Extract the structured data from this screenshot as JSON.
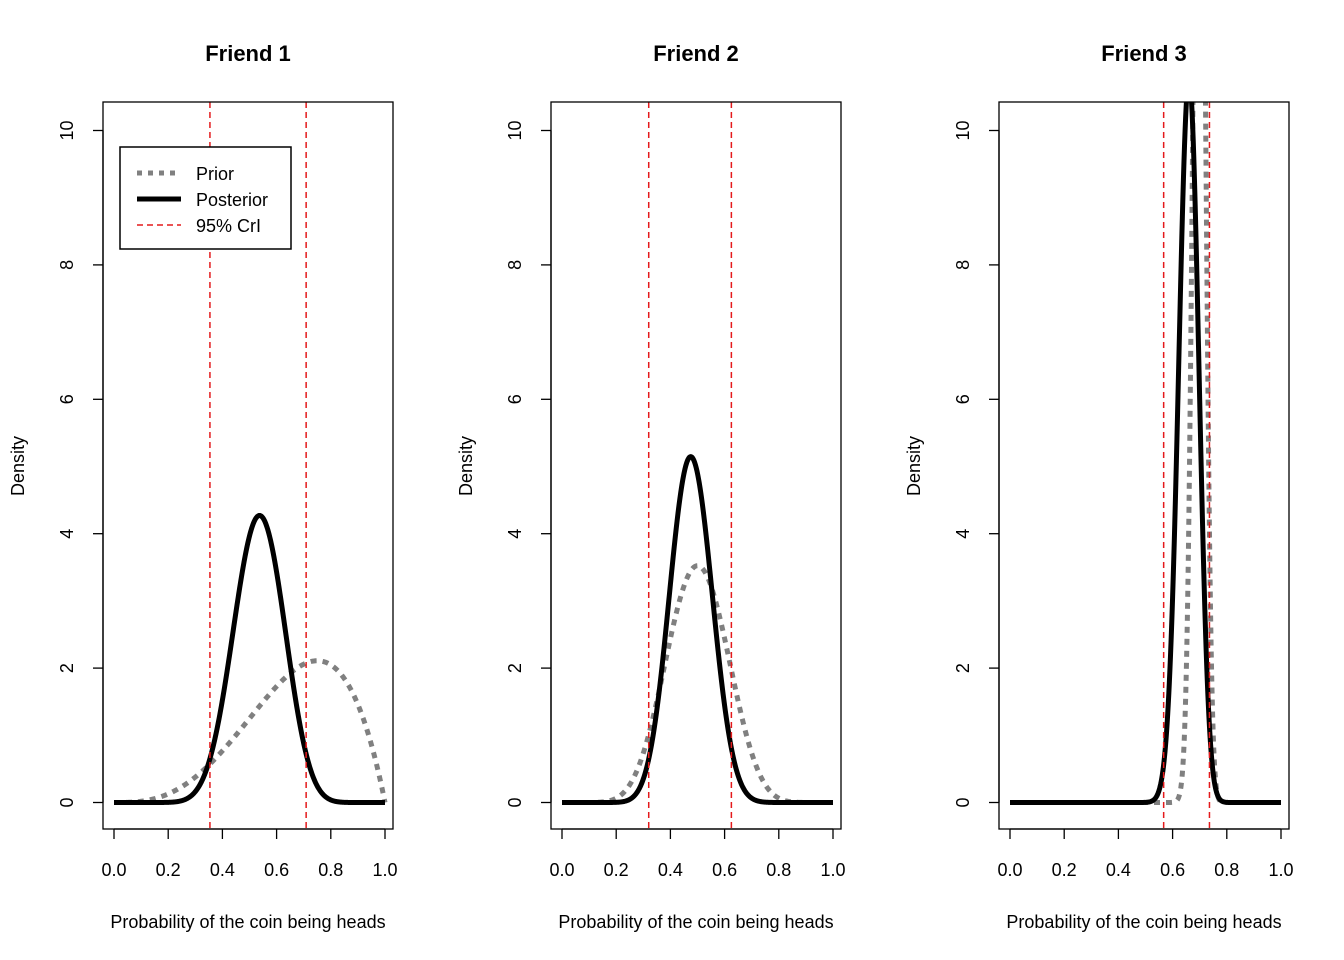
{
  "colors": {
    "prior": "#808080",
    "posterior": "#000000",
    "credible_interval": "#e41a1c"
  },
  "chart_data": [
    {
      "type": "line",
      "title": "Friend 1",
      "xlabel": "Probability of the coin being heads",
      "ylabel": "Density",
      "xlim": [
        0,
        1
      ],
      "ylim": [
        0,
        10
      ],
      "xticks": [
        "0.0",
        "0.2",
        "0.4",
        "0.6",
        "0.8",
        "1.0"
      ],
      "yticks": [
        "0",
        "2",
        "4",
        "6",
        "8",
        "10"
      ],
      "legend": {
        "position": "top-left",
        "entries": [
          "Prior",
          "Posterior",
          "95% CrI"
        ]
      },
      "prior": {
        "name": "Prior",
        "style": "dotted",
        "alpha": 4,
        "beta": 2
      },
      "posterior": {
        "name": "Posterior",
        "style": "solid",
        "alpha": 15.5,
        "beta": 13.5
      },
      "credible_interval": [
        0.354,
        0.709
      ]
    },
    {
      "type": "line",
      "title": "Friend 2",
      "xlabel": "Probability of the coin being heads",
      "ylabel": "Density",
      "xlim": [
        0,
        1
      ],
      "ylim": [
        0,
        10
      ],
      "xticks": [
        "0.0",
        "0.2",
        "0.4",
        "0.6",
        "0.8",
        "1.0"
      ],
      "yticks": [
        "0",
        "2",
        "4",
        "6",
        "8",
        "10"
      ],
      "prior": {
        "name": "Prior",
        "style": "dotted",
        "alpha": 10,
        "beta": 10
      },
      "posterior": {
        "name": "Posterior",
        "style": "solid",
        "alpha": 20,
        "beta": 22
      },
      "credible_interval": [
        0.32,
        0.625
      ]
    },
    {
      "type": "line",
      "title": "Friend 3",
      "xlabel": "Probability of the coin being heads",
      "ylabel": "Density",
      "xlim": [
        0,
        1
      ],
      "ylim": [
        0,
        10
      ],
      "xticks": [
        "0.0",
        "0.2",
        "0.4",
        "0.6",
        "0.8",
        "1.0"
      ],
      "yticks": [
        "0",
        "2",
        "4",
        "6",
        "8",
        "10"
      ],
      "prior": {
        "name": "Prior",
        "style": "dotted",
        "alpha": 300,
        "beta": 130
      },
      "posterior": {
        "name": "Posterior",
        "style": "solid",
        "alpha": 108,
        "beta": 56
      },
      "credible_interval": [
        0.567,
        0.736
      ]
    }
  ]
}
